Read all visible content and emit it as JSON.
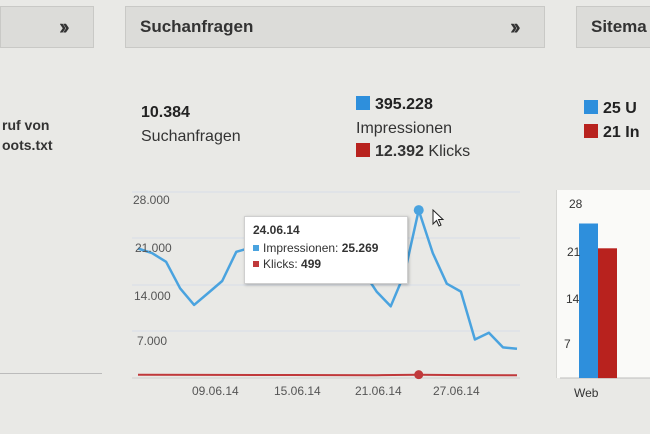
{
  "left_panel": {
    "text_line1": "ruf von",
    "text_line2": "oots.txt"
  },
  "search_panel": {
    "title": "Suchanfragen",
    "summary": {
      "queries_value": "10.384",
      "queries_label": "Suchanfragen",
      "impressions_value": "395.228",
      "impressions_label": "Impressionen",
      "clicks_value": "12.392",
      "clicks_label": "Klicks"
    },
    "tooltip": {
      "date": "24.06.14",
      "impressions_label": "Impressionen:",
      "impressions_value": "25.269",
      "clicks_label": "Klicks:",
      "clicks_value": "499"
    }
  },
  "sitemap_panel": {
    "title": "Sitema",
    "legend1": "25 U",
    "legend2": "21 In",
    "category": "Web"
  },
  "colors": {
    "impressions": "#4aa3df",
    "clicks": "#c0393b",
    "bar_blue": "#2e8fdc",
    "bar_red": "#b8221e"
  },
  "chart_data": [
    {
      "type": "line",
      "y_ticks": [
        "28.000",
        "21.000",
        "14.000",
        "7.000"
      ],
      "x_ticks": [
        "09.06.14",
        "15.06.14",
        "21.06.14",
        "27.06.14"
      ],
      "ylim": [
        0,
        28000
      ],
      "series": [
        {
          "name": "Impressionen",
          "x": [
            "04.06.14",
            "05.06.14",
            "06.06.14",
            "07.06.14",
            "08.06.14",
            "09.06.14",
            "10.06.14",
            "11.06.14",
            "12.06.14",
            "13.06.14",
            "14.06.14",
            "15.06.14",
            "16.06.14",
            "17.06.14",
            "18.06.14",
            "19.06.14",
            "20.06.14",
            "21.06.14",
            "22.06.14",
            "23.06.14",
            "24.06.14",
            "25.06.14",
            "26.06.14",
            "27.06.14",
            "28.06.14",
            "29.06.14",
            "30.06.14",
            "01.07.14"
          ],
          "values": [
            19500,
            18800,
            17500,
            13500,
            11000,
            12800,
            14600,
            19000,
            19600,
            21500,
            21800,
            16300,
            16300,
            17000,
            19800,
            21000,
            16200,
            13000,
            10800,
            15800,
            25269,
            18800,
            14200,
            13000,
            5800,
            6800,
            4600,
            4400
          ]
        },
        {
          "name": "Klicks",
          "x": [
            "04.06.14",
            "09.06.14",
            "15.06.14",
            "21.06.14",
            "24.06.14",
            "27.06.14",
            "01.07.14"
          ],
          "values": [
            480,
            460,
            450,
            420,
            499,
            430,
            410
          ]
        }
      ]
    },
    {
      "type": "bar",
      "categories": [
        "Web"
      ],
      "y_ticks": [
        "28",
        "21",
        "14",
        "7"
      ],
      "ylim": [
        0,
        28
      ],
      "series": [
        {
          "name": "25 U",
          "values": [
            25
          ]
        },
        {
          "name": "21 In",
          "values": [
            21
          ]
        }
      ]
    }
  ]
}
